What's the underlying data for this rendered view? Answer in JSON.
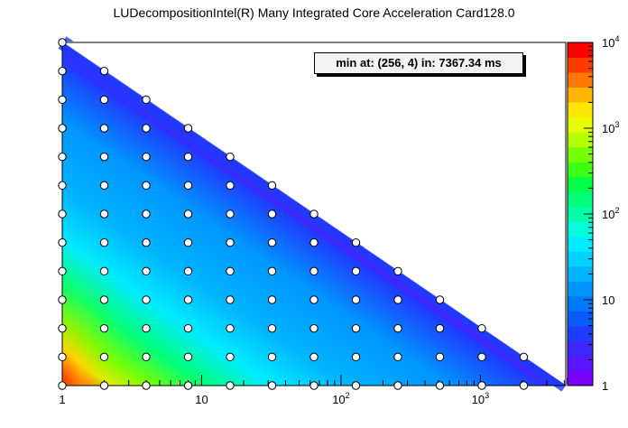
{
  "title": "LUDecompositionIntel(R) Many Integrated Core Acceleration Card128.0",
  "annotation": "min at: (256, 4) in: 7367.34 ms",
  "chart_data": {
    "type": "heatmap",
    "title": "LUDecompositionIntel(R) Many Integrated Core Acceleration Card128.0",
    "xscale": "log",
    "yscale": "log",
    "xlim": [
      1,
      4096
    ],
    "ylim": [
      1,
      4096
    ],
    "x_ticks": [
      {
        "value": 1,
        "base": "1",
        "exp": ""
      },
      {
        "value": 10,
        "base": "10",
        "exp": ""
      },
      {
        "value": 100,
        "base": "10",
        "exp": "2"
      },
      {
        "value": 1000,
        "base": "10",
        "exp": "3"
      }
    ],
    "colorbar": {
      "scale": "log",
      "range": [
        1,
        10000
      ],
      "ticks": [
        {
          "value": 1,
          "base": "1",
          "exp": ""
        },
        {
          "value": 10,
          "base": "10",
          "exp": ""
        },
        {
          "value": 100,
          "base": "10",
          "exp": "2"
        },
        {
          "value": 1000,
          "base": "10",
          "exp": "3"
        },
        {
          "value": 10000,
          "base": "10",
          "exp": "4"
        }
      ],
      "colors": [
        "#7a00ff",
        "#5a14ff",
        "#3c28ff",
        "#1e3cff",
        "#0a5aff",
        "#0078ff",
        "#0096ff",
        "#00b4ff",
        "#00d2ff",
        "#00ecff",
        "#00ffdc",
        "#00ffaa",
        "#00ff78",
        "#00ff46",
        "#3cff14",
        "#78ff00",
        "#b4ff00",
        "#e6ff00",
        "#ffe600",
        "#ffb400",
        "#ff7800",
        "#ff3c00",
        "#ff0000"
      ]
    },
    "points_x": [
      1,
      2,
      4,
      8,
      16,
      32,
      64,
      128,
      256,
      512,
      1024,
      2048
    ],
    "points_y": [
      1,
      2,
      4,
      8,
      16,
      32,
      64,
      128,
      256,
      512,
      1024,
      2048,
      4096
    ],
    "minimum": {
      "x": 256,
      "y": 4,
      "time_ms": 7367.34
    }
  }
}
